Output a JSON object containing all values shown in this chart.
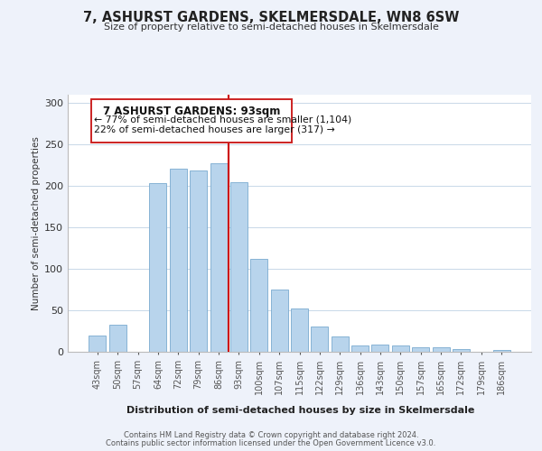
{
  "title": "7, ASHURST GARDENS, SKELMERSDALE, WN8 6SW",
  "subtitle": "Size of property relative to semi-detached houses in Skelmersdale",
  "xlabel": "Distribution of semi-detached houses by size in Skelmersdale",
  "ylabel": "Number of semi-detached properties",
  "bar_labels": [
    "43sqm",
    "50sqm",
    "57sqm",
    "64sqm",
    "72sqm",
    "79sqm",
    "86sqm",
    "93sqm",
    "100sqm",
    "107sqm",
    "115sqm",
    "122sqm",
    "129sqm",
    "136sqm",
    "143sqm",
    "150sqm",
    "157sqm",
    "165sqm",
    "172sqm",
    "179sqm",
    "186sqm"
  ],
  "bar_values": [
    20,
    33,
    0,
    203,
    221,
    219,
    227,
    205,
    112,
    75,
    52,
    30,
    19,
    8,
    9,
    8,
    5,
    5,
    3,
    0,
    2
  ],
  "bar_color": "#b8d4ec",
  "bar_edge_color": "#7aaacf",
  "vline_color": "#cc0000",
  "ylim": [
    0,
    310
  ],
  "yticks": [
    0,
    50,
    100,
    150,
    200,
    250,
    300
  ],
  "annotation_title": "7 ASHURST GARDENS: 93sqm",
  "annotation_line1": "← 77% of semi-detached houses are smaller (1,104)",
  "annotation_line2": "22% of semi-detached houses are larger (317) →",
  "footer1": "Contains HM Land Registry data © Crown copyright and database right 2024.",
  "footer2": "Contains public sector information licensed under the Open Government Licence v3.0.",
  "bg_color": "#eef2fa",
  "plot_bg_color": "#ffffff"
}
